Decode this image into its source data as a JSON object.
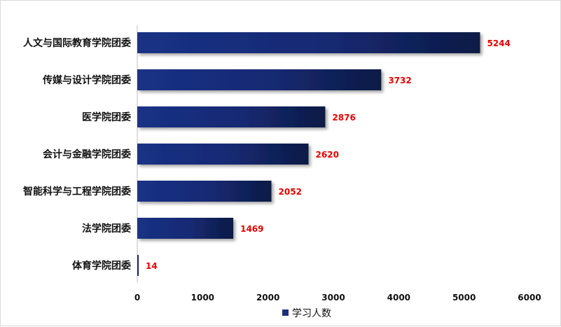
{
  "chart_data": {
    "type": "bar",
    "orientation": "horizontal",
    "title": "",
    "xlabel": "",
    "ylabel": "",
    "categories": [
      "人文与国际教育学院团委",
      "传媒与设计学院团委",
      "医学院团委",
      "会计与金融学院团委",
      "智能科学与工程学院团委",
      "法学院团委",
      "体育学院团委"
    ],
    "series": [
      {
        "name": "学习人数",
        "values": [
          5244,
          3732,
          2876,
          2620,
          2052,
          1469,
          14
        ]
      }
    ],
    "xlim": [
      0,
      6000
    ],
    "xticks": [
      0,
      1000,
      2000,
      3000,
      4000,
      5000,
      6000
    ],
    "grid": false,
    "legend": "bottom",
    "data_labels": true
  },
  "colors": {
    "bar": "#162a73",
    "bar_dark": "#0f1f4f",
    "data_label": "#e60000",
    "legend_marker": "#1b2f7a"
  }
}
